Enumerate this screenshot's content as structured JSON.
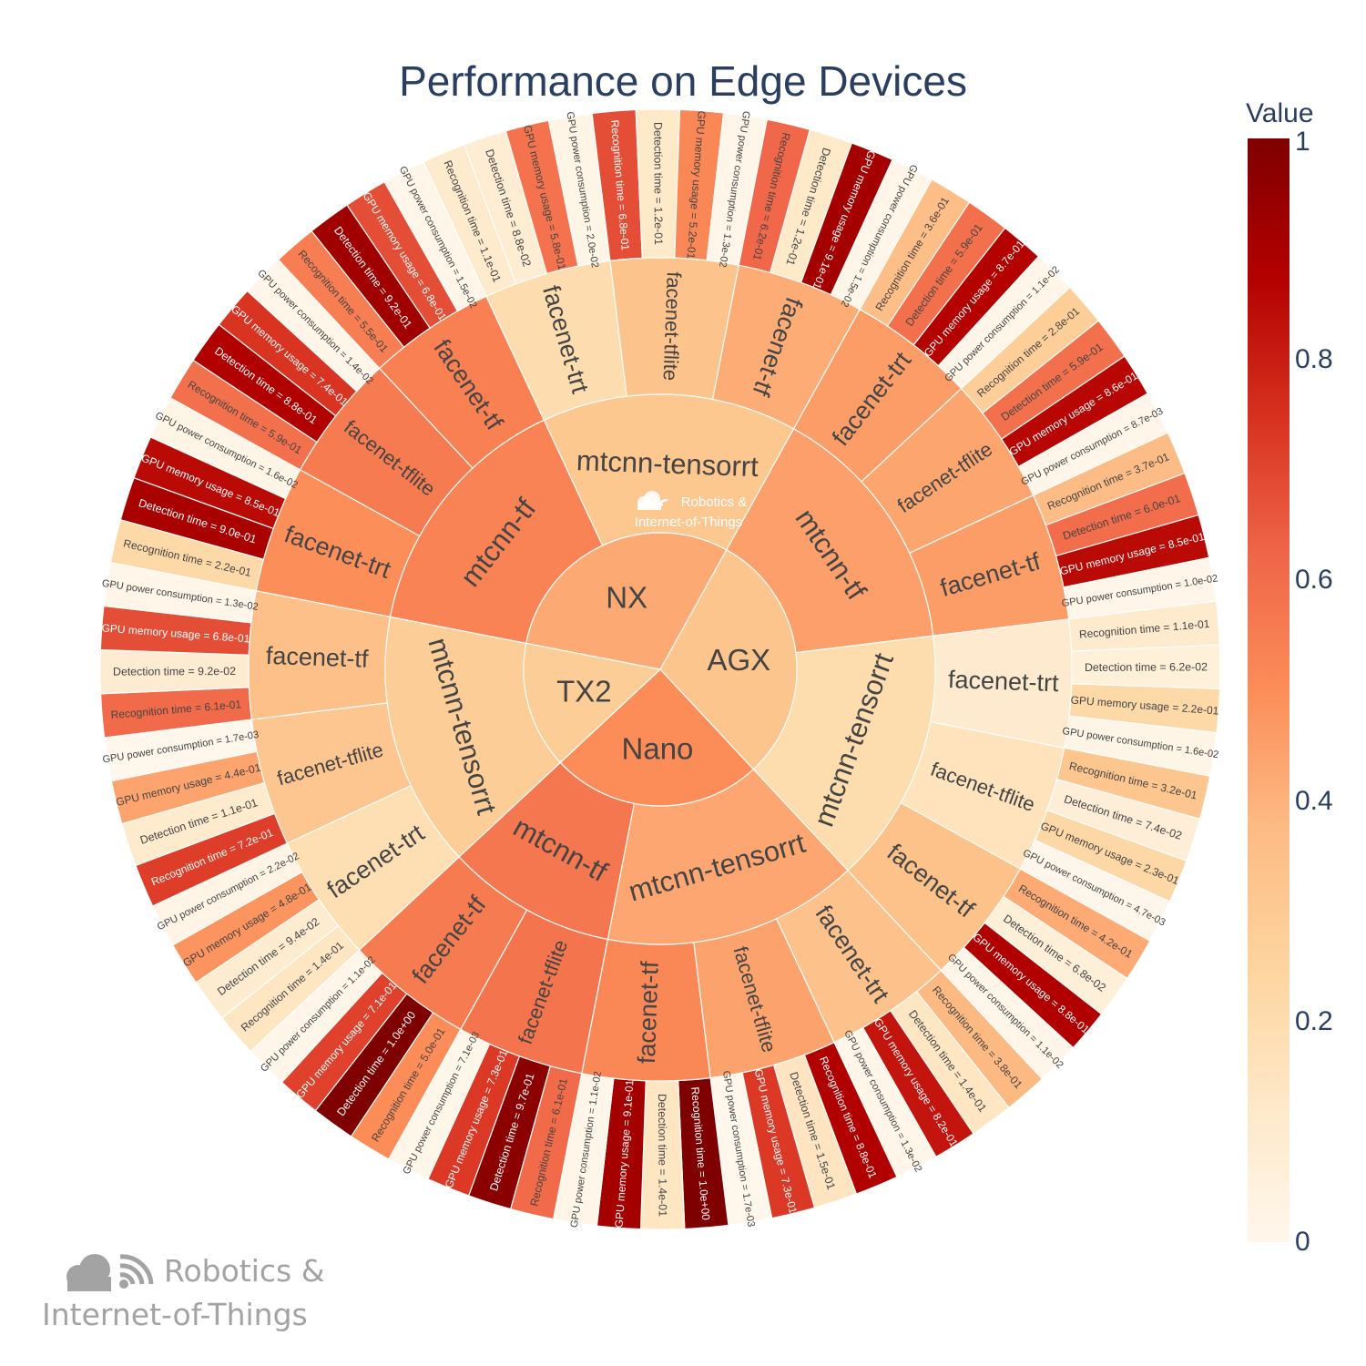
{
  "chart_data": {
    "type": "sunburst",
    "title": "Performance on Edge Devices",
    "colorbar": {
      "title": "Value",
      "range": [
        0,
        1
      ],
      "ticks": [
        "0",
        "0.2",
        "0.4",
        "0.6",
        "0.8",
        "1"
      ],
      "colorscale": [
        "#fff7ec",
        "#fee8c8",
        "#fdd49e",
        "#fdbb84",
        "#fc8d59",
        "#ef6548",
        "#d7301f",
        "#b30000",
        "#7f0000"
      ]
    },
    "metric_order": [
      "Recognition time",
      "Detection time",
      "GPU memory usage",
      "GPU power consumption"
    ],
    "devices": [
      {
        "name": "AGX",
        "detectors": [
          {
            "name": "mtcnn-tf",
            "recognizers": [
              {
                "name": "facenet-trt",
                "values": [
                  0.36,
                  0.59,
                  0.87,
                  0.011
                ]
              },
              {
                "name": "facenet-tflite",
                "values": [
                  0.28,
                  0.59,
                  0.86,
                  0.0087
                ]
              },
              {
                "name": "facenet-tf",
                "values": [
                  0.37,
                  0.6,
                  0.85,
                  0.01
                ]
              }
            ]
          },
          {
            "name": "mtcnn-tensorrt",
            "recognizers": [
              {
                "name": "facenet-trt",
                "values": [
                  0.11,
                  0.062,
                  0.22,
                  0.016
                ]
              },
              {
                "name": "facenet-tflite",
                "values": [
                  0.32,
                  0.074,
                  0.23,
                  0.0047
                ]
              },
              {
                "name": "facenet-tf",
                "values": [
                  0.42,
                  0.068,
                  0.88,
                  0.011
                ]
              }
            ]
          }
        ]
      },
      {
        "name": "Nano",
        "detectors": [
          {
            "name": "mtcnn-tensorrt",
            "recognizers": [
              {
                "name": "facenet-trt",
                "values": [
                  0.38,
                  0.14,
                  0.82,
                  0.013
                ]
              },
              {
                "name": "facenet-tflite",
                "values": [
                  0.88,
                  0.15,
                  0.73,
                  0.0017
                ]
              },
              {
                "name": "facenet-tf",
                "values": [
                  1.0,
                  0.14,
                  0.91,
                  0.011
                ]
              }
            ]
          },
          {
            "name": "mtcnn-tf",
            "recognizers": [
              {
                "name": "facenet-tflite",
                "values": [
                  0.61,
                  0.97,
                  0.73,
                  0.0071
                ]
              },
              {
                "name": "facenet-tf",
                "values": [
                  0.5,
                  1.0,
                  0.71,
                  0.011
                ]
              }
            ]
          }
        ]
      },
      {
        "name": "TX2",
        "detectors": [
          {
            "name": "mtcnn-tensorrt",
            "recognizers": [
              {
                "name": "facenet-trt",
                "values": [
                  0.14,
                  0.094,
                  0.48,
                  0.022
                ]
              },
              {
                "name": "facenet-tflite",
                "values": [
                  0.72,
                  0.11,
                  0.44,
                  0.0017
                ]
              },
              {
                "name": "facenet-tf",
                "values": [
                  0.61,
                  0.092,
                  0.68,
                  0.013
                ]
              }
            ]
          }
        ]
      },
      {
        "name": "NX",
        "detectors": [
          {
            "name": "mtcnn-tf",
            "recognizers": [
              {
                "name": "facenet-trt",
                "values": [
                  0.22,
                  0.9,
                  0.85,
                  0.016
                ]
              },
              {
                "name": "facenet-tflite",
                "values": [
                  0.59,
                  0.88,
                  0.74,
                  0.014
                ]
              },
              {
                "name": "facenet-tf",
                "values": [
                  0.55,
                  0.92,
                  0.68,
                  0.015
                ]
              }
            ]
          },
          {
            "name": "mtcnn-tensorrt",
            "recognizers": [
              {
                "name": "facenet-trt",
                "values": [
                  0.11,
                  0.088,
                  0.58,
                  0.02
                ]
              },
              {
                "name": "facenet-tflite",
                "values": [
                  0.68,
                  0.12,
                  0.52,
                  0.013
                ]
              },
              {
                "name": "facenet-tf",
                "values": [
                  0.62,
                  0.12,
                  0.91,
                  0.015
                ]
              }
            ]
          }
        ]
      }
    ]
  },
  "watermark": {
    "line1": "Robotics &",
    "line2": "Internet-of-Things",
    "icon": "cloud-signal-icon"
  }
}
